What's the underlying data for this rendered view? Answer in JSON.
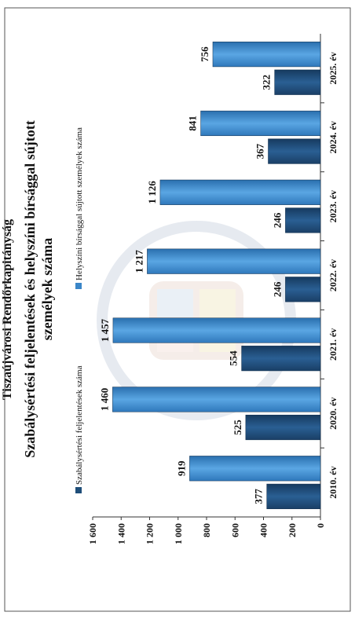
{
  "header": {
    "org": "Tiszaújvárosi Rendőrkapitányság"
  },
  "chart_data": {
    "type": "bar",
    "title": "Szabálysértési feljelentések és helyszíni bírsággal sújtott személyek száma",
    "categories": [
      "2010. év",
      "2020. év",
      "2021. év",
      "2022. év",
      "2023. év",
      "2024. év",
      "2025. év"
    ],
    "series": [
      {
        "name": "Szabálysértési feljelentések száma",
        "values": [
          377,
          525,
          554,
          246,
          246,
          367,
          322
        ],
        "labels": [
          "377",
          "525",
          "554",
          "246",
          "246",
          "367",
          "322"
        ],
        "color": "#1f4e79"
      },
      {
        "name": "Helyszíni bírsággal sújtott személyek száma",
        "values": [
          919,
          1460,
          1457,
          1217,
          1126,
          841,
          756
        ],
        "labels": [
          "919",
          "1 460",
          "1 457",
          "1 217",
          "1 126",
          "841",
          "756"
        ],
        "color": "#3a86c8"
      }
    ],
    "yticks": [
      "0",
      "200",
      "400",
      "600",
      "800",
      "1 000",
      "1 200",
      "1 400",
      "1 600"
    ],
    "ylim": [
      0,
      1600
    ],
    "grid": false,
    "legend_position": "top"
  }
}
